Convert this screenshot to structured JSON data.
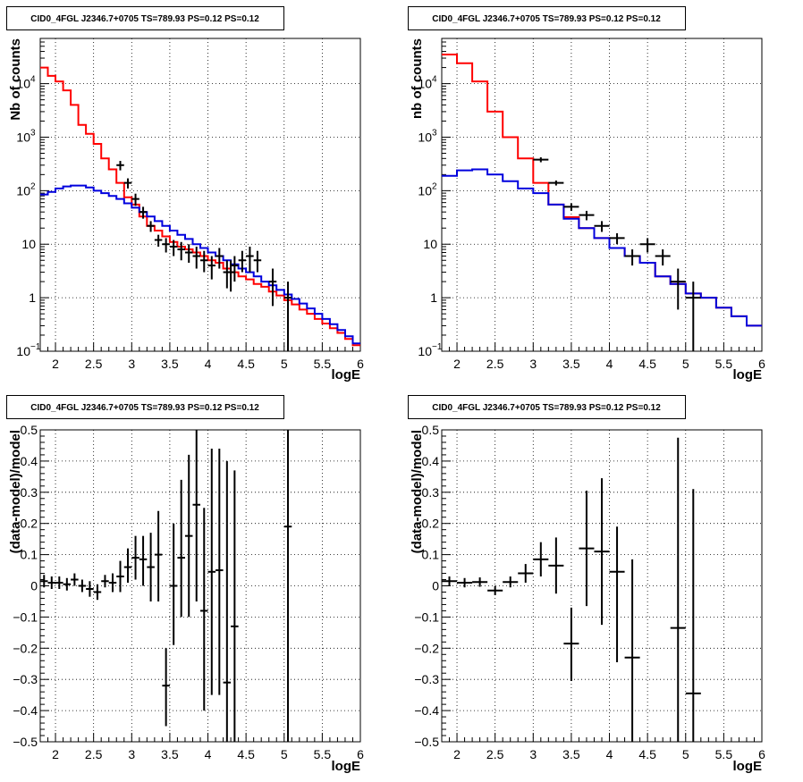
{
  "chart_data": [
    {
      "type": "line",
      "title": "CID0_4FGL J2346.7+0705 TS=789.93 PS=0.12 PS=0.12",
      "xlabel": "logE",
      "ylabel": "Nb of counts",
      "xlim": [
        1.8,
        6
      ],
      "ylim": [
        0.1,
        70000
      ],
      "yscale": "log",
      "grid": true,
      "x_ticks": [
        "2",
        "2.5",
        "3",
        "3.5",
        "4",
        "4.5",
        "5",
        "5.5",
        "6"
      ],
      "y_ticks": [
        {
          "v": 0.1,
          "base": "10",
          "exp": "−1"
        },
        {
          "v": 1,
          "label": "1"
        },
        {
          "v": 10,
          "label": "10"
        },
        {
          "v": 100,
          "base": "10",
          "exp": "2"
        },
        {
          "v": 1000,
          "base": "10",
          "exp": "3"
        },
        {
          "v": 10000,
          "base": "10",
          "exp": "4"
        }
      ],
      "series": [
        {
          "style": "step",
          "color": "#ff0000",
          "edges": [
            1.8,
            1.9,
            2.0,
            2.1,
            2.2,
            2.3,
            2.4,
            2.5,
            2.6,
            2.7,
            2.8,
            2.9,
            3.0,
            3.1,
            3.2,
            3.3,
            3.4,
            3.5,
            3.6,
            3.7,
            3.8,
            3.9,
            4.0,
            4.1,
            4.2,
            4.3,
            4.4,
            4.5,
            4.6,
            4.7,
            4.8,
            4.9,
            5.0,
            5.1,
            5.2,
            5.3,
            5.4,
            5.5,
            5.6,
            5.7,
            5.8,
            5.9,
            6.0
          ],
          "values": [
            20000,
            14000,
            11000,
            7500,
            4000,
            1700,
            1150,
            750,
            400,
            250,
            140,
            75,
            55,
            33,
            22,
            18,
            14,
            11,
            9,
            8,
            7,
            6,
            5,
            4.5,
            3.5,
            3,
            2.5,
            2.2,
            1.8,
            1.6,
            1.3,
            1.1,
            0.9,
            0.75,
            0.6,
            0.5,
            0.4,
            0.33,
            0.27,
            0.22,
            0.17,
            0.13
          ]
        },
        {
          "style": "step",
          "color": "#0000dd",
          "edges": [
            1.8,
            1.9,
            2.0,
            2.1,
            2.2,
            2.3,
            2.4,
            2.5,
            2.6,
            2.7,
            2.8,
            2.9,
            3.0,
            3.1,
            3.2,
            3.3,
            3.4,
            3.5,
            3.6,
            3.7,
            3.8,
            3.9,
            4.0,
            4.1,
            4.2,
            4.3,
            4.4,
            4.5,
            4.6,
            4.7,
            4.8,
            4.9,
            5.0,
            5.1,
            5.2,
            5.3,
            5.4,
            5.5,
            5.6,
            5.7,
            5.8,
            5.9,
            6.0
          ],
          "values": [
            85,
            95,
            110,
            120,
            125,
            125,
            115,
            100,
            90,
            80,
            70,
            58,
            48,
            40,
            33,
            27,
            22,
            18,
            15,
            12.5,
            10,
            8.5,
            7,
            6,
            5,
            4.2,
            3.5,
            3,
            2.5,
            2,
            1.7,
            1.4,
            1.15,
            0.95,
            0.78,
            0.63,
            0.5,
            0.4,
            0.32,
            0.25,
            0.19,
            0.14
          ]
        }
      ],
      "points": {
        "color": "#000000",
        "x": [
          2.85,
          2.95,
          3.05,
          3.15,
          3.25,
          3.35,
          3.45,
          3.55,
          3.65,
          3.75,
          3.85,
          3.95,
          4.05,
          4.15,
          4.25,
          4.3,
          4.35,
          4.45,
          4.55,
          4.65,
          4.85,
          5.05
        ],
        "xerr": 0.05,
        "y": [
          300,
          140,
          70,
          40,
          22,
          12,
          10,
          9,
          8,
          7,
          6,
          5,
          4,
          6,
          3,
          3,
          4,
          5,
          6,
          5,
          2,
          1
        ],
        "ylo": [
          240,
          110,
          52,
          30,
          17,
          9,
          7,
          6,
          5,
          4.5,
          3.5,
          3,
          2.2,
          3.5,
          1.5,
          1.3,
          2,
          3,
          3,
          3,
          0.7,
          0.1
        ],
        "yhi": [
          360,
          170,
          88,
          50,
          27,
          15,
          13,
          12,
          11,
          10,
          9,
          7.5,
          6,
          8.5,
          5,
          5,
          6,
          7.5,
          9,
          7.5,
          3.5,
          2
        ]
      }
    },
    {
      "type": "line",
      "title": "CID0_4FGL J2346.7+0705 TS=789.93 PS=0.12 PS=0.12",
      "xlabel": "logE",
      "ylabel": "nb of counts",
      "xlim": [
        1.8,
        6
      ],
      "ylim": [
        0.1,
        70000
      ],
      "yscale": "log",
      "grid": true,
      "x_ticks": [
        "2",
        "2.5",
        "3",
        "3.5",
        "4",
        "4.5",
        "5",
        "5.5",
        "6"
      ],
      "y_ticks": [
        {
          "v": 0.1,
          "base": "10",
          "exp": "−1"
        },
        {
          "v": 1,
          "label": "1"
        },
        {
          "v": 10,
          "label": "10"
        },
        {
          "v": 100,
          "base": "10",
          "exp": "2"
        },
        {
          "v": 1000,
          "base": "10",
          "exp": "3"
        },
        {
          "v": 10000,
          "base": "10",
          "exp": "4"
        }
      ],
      "series": [
        {
          "style": "step",
          "color": "#ff0000",
          "edges": [
            1.8,
            2.0,
            2.2,
            2.4,
            2.6,
            2.8,
            3.0,
            3.2,
            3.4,
            3.6,
            3.8,
            4.0,
            4.2,
            4.4,
            4.6,
            4.8,
            5.0,
            5.2,
            5.4,
            5.6,
            5.8,
            6.0
          ],
          "values": [
            35000,
            24000,
            11000,
            3000,
            1000,
            400,
            140,
            55,
            32,
            20,
            13,
            8.5,
            6,
            4.5,
            2.5,
            1.8,
            1.2,
            1,
            0.65,
            0.45,
            0.3
          ]
        },
        {
          "style": "step",
          "color": "#0000dd",
          "edges": [
            1.8,
            2.0,
            2.2,
            2.4,
            2.6,
            2.8,
            3.0,
            3.2,
            3.4,
            3.6,
            3.8,
            4.0,
            4.2,
            4.4,
            4.6,
            4.8,
            5.0,
            5.2,
            5.4,
            5.6,
            5.8,
            6.0
          ],
          "values": [
            190,
            240,
            250,
            200,
            150,
            110,
            90,
            55,
            30,
            20,
            13,
            8.5,
            6,
            4.5,
            2.5,
            1.8,
            1.2,
            1,
            0.65,
            0.45,
            0.3
          ]
        }
      ],
      "points": {
        "color": "#000000",
        "x": [
          3.1,
          3.3,
          3.5,
          3.7,
          3.9,
          4.1,
          4.3,
          4.5,
          4.7,
          4.9,
          5.1
        ],
        "xerr": 0.1,
        "y": [
          380,
          140,
          50,
          35,
          22,
          13,
          6,
          10,
          6,
          2,
          1
        ],
        "ylo": [
          340,
          125,
          42,
          28,
          17,
          10,
          4,
          7,
          4,
          0.6,
          0.1
        ],
        "yhi": [
          420,
          155,
          58,
          42,
          27,
          16,
          8,
          13,
          8,
          3.5,
          2
        ]
      }
    },
    {
      "type": "scatter",
      "title": "CID0_4FGL J2346.7+0705 TS=789.93 PS=0.12 PS=0.12",
      "xlabel": "logE",
      "ylabel": "(data-model)/model",
      "xlim": [
        1.8,
        6
      ],
      "ylim": [
        -0.5,
        0.5
      ],
      "yscale": "linear",
      "grid": true,
      "x_ticks": [
        "2",
        "2.5",
        "3",
        "3.5",
        "4",
        "4.5",
        "5",
        "5.5",
        "6"
      ],
      "y_ticks_labels": [
        "−0.5",
        "−0.4",
        "−0.3",
        "−0.2",
        "−0.1",
        "0",
        "0.1",
        "0.2",
        "0.3",
        "0.4",
        "0.5"
      ],
      "points": {
        "color": "#000000",
        "x": [
          1.85,
          1.95,
          2.05,
          2.15,
          2.25,
          2.35,
          2.45,
          2.55,
          2.65,
          2.75,
          2.85,
          2.95,
          3.05,
          3.15,
          3.25,
          3.35,
          3.45,
          3.55,
          3.65,
          3.75,
          3.85,
          3.95,
          4.05,
          4.15,
          4.25,
          4.35,
          5.05
        ],
        "xerr": 0.05,
        "y": [
          0.015,
          0.01,
          0.01,
          0.005,
          0.02,
          0.0,
          -0.01,
          -0.02,
          0.015,
          0.01,
          0.03,
          0.06,
          0.09,
          0.085,
          0.06,
          0.1,
          -0.32,
          0.0,
          0.09,
          0.16,
          0.26,
          -0.08,
          0.045,
          0.05,
          -0.31,
          -0.13,
          0.19
        ],
        "ylo": [
          -0.005,
          -0.01,
          -0.01,
          -0.015,
          0.0,
          -0.02,
          -0.035,
          -0.045,
          -0.005,
          -0.02,
          -0.02,
          0.01,
          0.02,
          0.0,
          -0.05,
          -0.05,
          -0.45,
          -0.19,
          -0.1,
          -0.1,
          -0.05,
          -0.4,
          -0.35,
          -0.35,
          -0.5,
          -0.5,
          -0.5
        ],
        "yhi": [
          0.035,
          0.03,
          0.03,
          0.025,
          0.04,
          0.02,
          0.015,
          0.005,
          0.035,
          0.04,
          0.08,
          0.12,
          0.16,
          0.16,
          0.17,
          0.24,
          -0.2,
          0.2,
          0.34,
          0.42,
          0.5,
          0.25,
          0.44,
          0.44,
          0.4,
          0.37,
          0.5
        ]
      }
    },
    {
      "type": "scatter",
      "title": "CID0_4FGL J2346.7+0705 TS=789.93 PS=0.12 PS=0.12",
      "xlabel": "logE",
      "ylabel": "(data-model)/model",
      "xlim": [
        1.8,
        6
      ],
      "ylim": [
        -0.5,
        0.5
      ],
      "yscale": "linear",
      "grid": true,
      "x_ticks": [
        "2",
        "2.5",
        "3",
        "3.5",
        "4",
        "4.5",
        "5",
        "5.5",
        "6"
      ],
      "y_ticks_labels": [
        "−0.5",
        "−0.4",
        "−0.3",
        "−0.2",
        "−0.1",
        "0",
        "0.1",
        "0.2",
        "0.3",
        "0.4",
        "0.5"
      ],
      "points": {
        "color": "#000000",
        "x": [
          1.9,
          2.1,
          2.3,
          2.5,
          2.7,
          2.9,
          3.1,
          3.3,
          3.5,
          3.7,
          3.9,
          4.1,
          4.3,
          4.9,
          5.1
        ],
        "xerr": 0.1,
        "y": [
          0.015,
          0.01,
          0.012,
          -0.015,
          0.012,
          0.04,
          0.085,
          0.065,
          -0.185,
          0.12,
          0.11,
          0.045,
          -0.23,
          -0.135,
          -0.345
        ],
        "ylo": [
          0.0,
          -0.005,
          -0.003,
          -0.03,
          -0.005,
          0.01,
          0.03,
          -0.025,
          -0.305,
          -0.065,
          -0.125,
          -0.245,
          -0.5,
          -0.5,
          -0.5
        ],
        "yhi": [
          0.03,
          0.025,
          0.027,
          0.0,
          0.03,
          0.07,
          0.14,
          0.155,
          -0.07,
          0.305,
          0.345,
          0.19,
          0.085,
          0.475,
          0.31
        ]
      }
    }
  ]
}
